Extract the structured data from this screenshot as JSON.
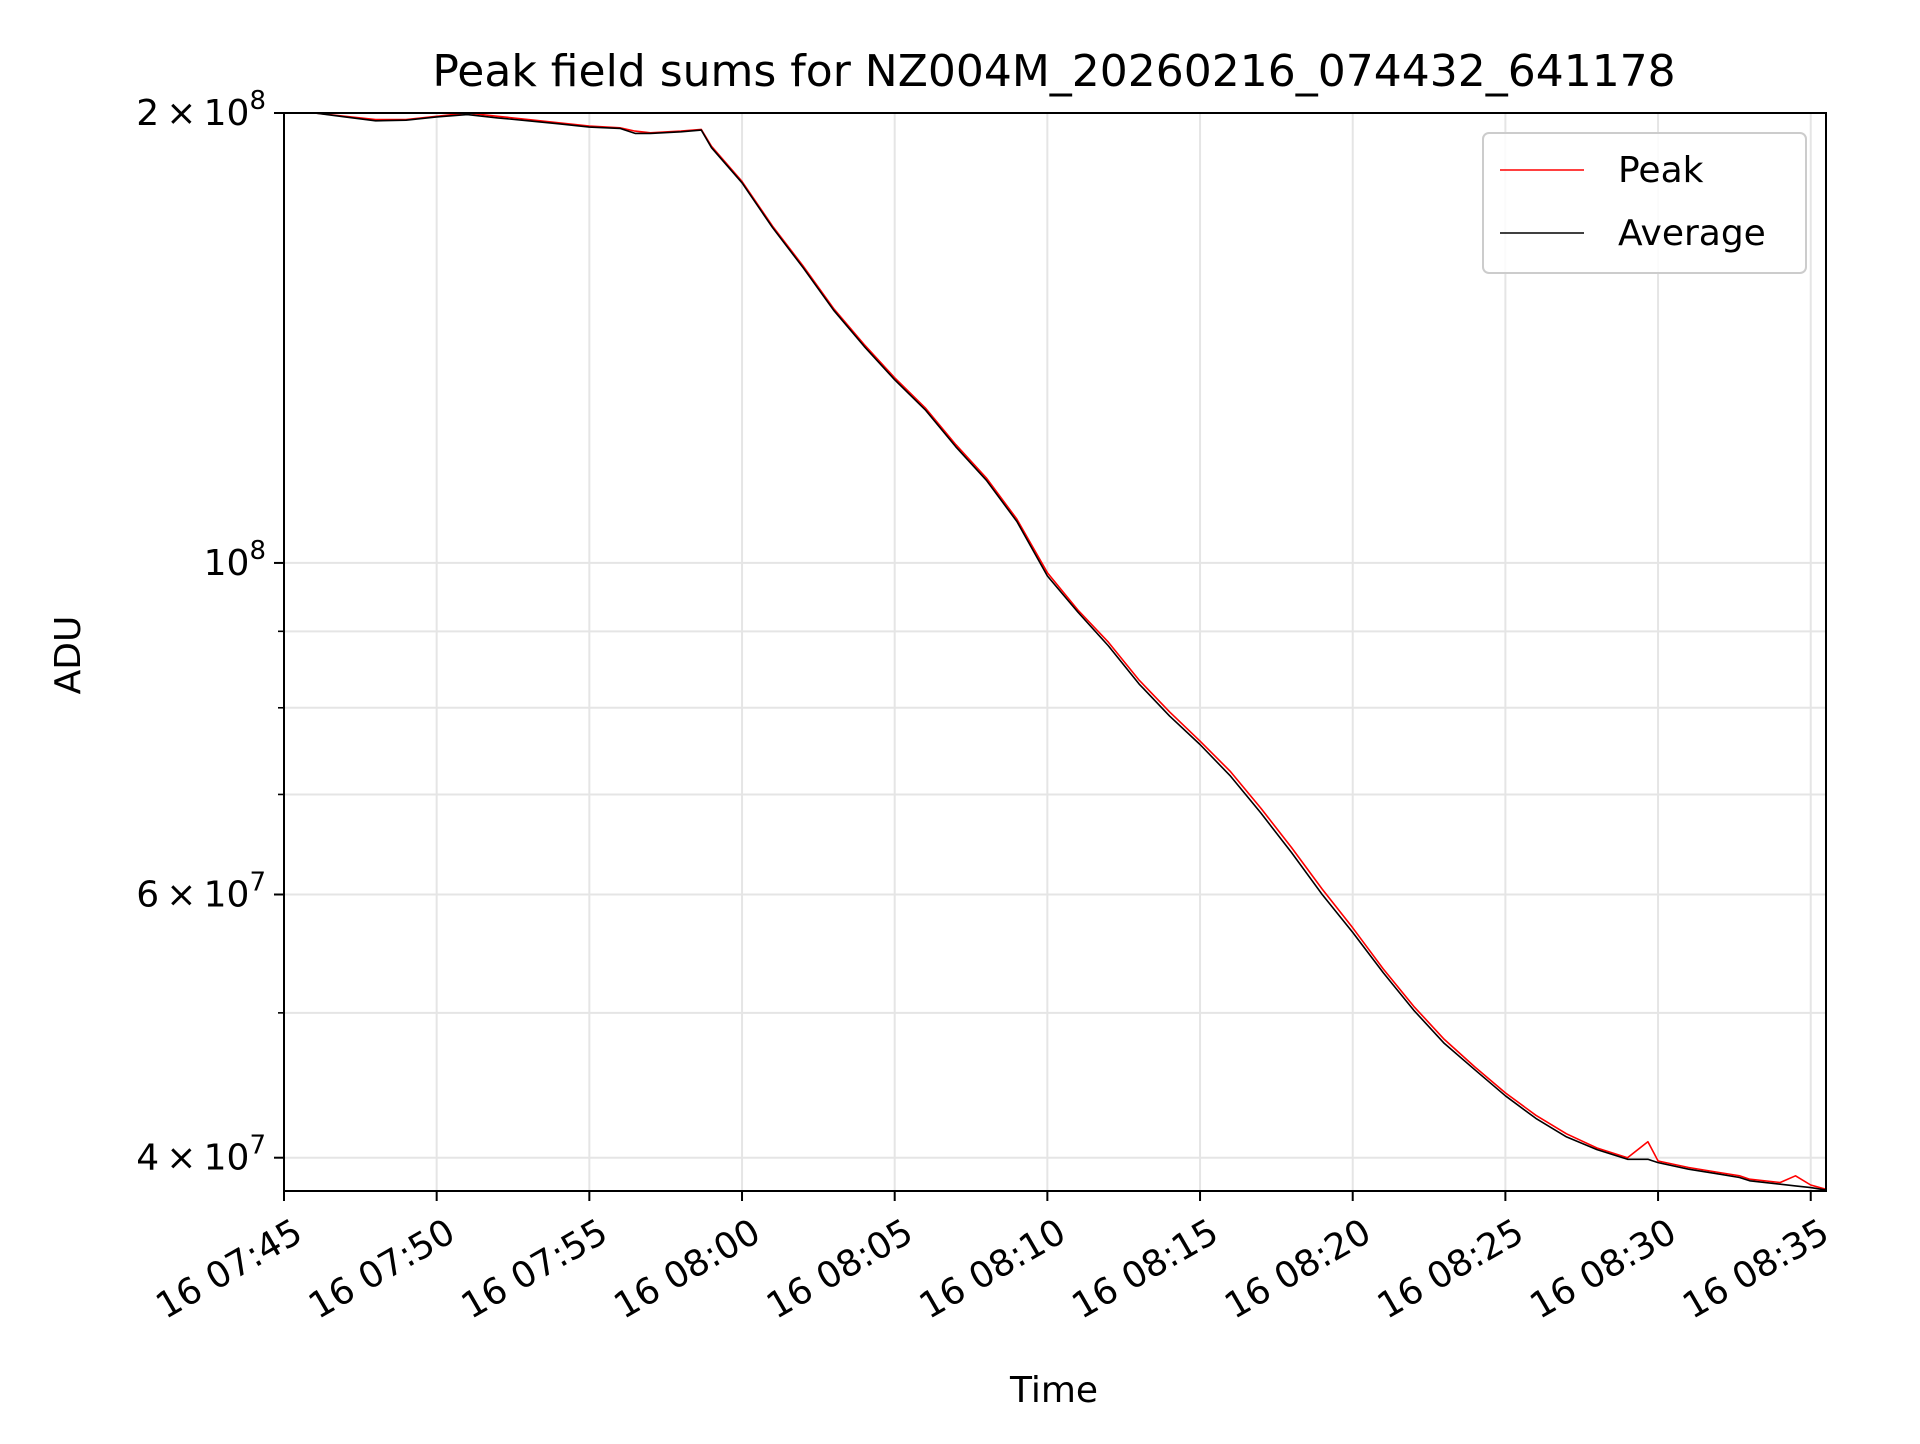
{
  "chart_data": {
    "type": "line",
    "title": "Peak field sums for NZ004M_20260216_074432_641178",
    "xlabel": "Time",
    "ylabel": "ADU",
    "yscale": "log",
    "xlim": [
      "16 07:45",
      "16 08:35:30"
    ],
    "ylim": [
      38000000,
      200000000
    ],
    "xticks": [
      "16 07:45",
      "16 07:50",
      "16 07:55",
      "16 08:00",
      "16 08:05",
      "16 08:10",
      "16 08:15",
      "16 08:20",
      "16 08:25",
      "16 08:30",
      "16 08:35"
    ],
    "yticks": [
      {
        "value": 40000000,
        "mant": "4",
        "exp": "7"
      },
      {
        "value": 60000000,
        "mant": "6",
        "exp": "7"
      },
      {
        "value": 100000000,
        "mant": "",
        "exp": "8"
      },
      {
        "value": 200000000,
        "mant": "2",
        "exp": "8"
      }
    ],
    "y_minor_ticks": [
      50000000,
      70000000,
      80000000,
      90000000
    ],
    "grid": true,
    "legend_position": "top-right",
    "series": [
      {
        "name": "Peak",
        "color": "#ff0000",
        "x": [
          "16 07:45",
          "16 07:46",
          "16 07:47",
          "16 07:48",
          "16 07:49",
          "16 07:50",
          "16 07:51",
          "16 07:52",
          "16 07:53",
          "16 07:54",
          "16 07:55",
          "16 07:56",
          "16 07:56:30",
          "16 07:57",
          "16 07:58",
          "16 07:58:40",
          "16 07:59",
          "16 08:00",
          "16 08:01",
          "16 08:02",
          "16 08:03",
          "16 08:04",
          "16 08:05",
          "16 08:06",
          "16 08:07",
          "16 08:08",
          "16 08:09",
          "16 08:10",
          "16 08:11",
          "16 08:12",
          "16 08:13",
          "16 08:14",
          "16 08:15",
          "16 08:16",
          "16 08:17",
          "16 08:18",
          "16 08:19",
          "16 08:20",
          "16 08:21",
          "16 08:22",
          "16 08:23",
          "16 08:24",
          "16 08:25",
          "16 08:26",
          "16 08:27",
          "16 08:28",
          "16 08:29",
          "16 08:29:40",
          "16 08:30",
          "16 08:31",
          "16 08:32",
          "16 08:32:40",
          "16 08:33",
          "16 08:34",
          "16 08:34:30",
          "16 08:35",
          "16 08:35:30"
        ],
        "values": [
          200000000,
          200000000,
          199000000,
          198000000,
          198000000,
          199000000,
          200000000,
          199000000,
          198000000,
          197000000,
          196000000,
          195500000,
          194500000,
          194000000,
          194500000,
          195000000,
          190000000,
          180000000,
          168000000,
          158000000,
          148000000,
          140000000,
          133000000,
          127000000,
          120000000,
          114000000,
          107000000,
          98500000,
          93000000,
          88500000,
          83500000,
          79500000,
          76000000,
          72500000,
          68500000,
          64500000,
          60500000,
          57000000,
          53500000,
          50500000,
          48000000,
          46000000,
          44200000,
          42700000,
          41500000,
          40600000,
          40000000,
          41000000,
          39800000,
          39400000,
          39100000,
          38900000,
          38700000,
          38500000,
          38900000,
          38350000,
          38100000
        ]
      },
      {
        "name": "Average",
        "color": "#000000",
        "x": [
          "16 07:45",
          "16 07:46",
          "16 07:47",
          "16 07:48",
          "16 07:49",
          "16 07:50",
          "16 07:51",
          "16 07:52",
          "16 07:53",
          "16 07:54",
          "16 07:55",
          "16 07:56",
          "16 07:56:30",
          "16 07:57",
          "16 07:58",
          "16 07:58:40",
          "16 07:59",
          "16 08:00",
          "16 08:01",
          "16 08:02",
          "16 08:03",
          "16 08:04",
          "16 08:05",
          "16 08:06",
          "16 08:07",
          "16 08:08",
          "16 08:09",
          "16 08:10",
          "16 08:11",
          "16 08:12",
          "16 08:13",
          "16 08:14",
          "16 08:15",
          "16 08:16",
          "16 08:17",
          "16 08:18",
          "16 08:19",
          "16 08:20",
          "16 08:21",
          "16 08:22",
          "16 08:23",
          "16 08:24",
          "16 08:25",
          "16 08:26",
          "16 08:27",
          "16 08:28",
          "16 08:29",
          "16 08:29:40",
          "16 08:30",
          "16 08:31",
          "16 08:32",
          "16 08:32:40",
          "16 08:33",
          "16 08:34",
          "16 08:34:30",
          "16 08:35",
          "16 08:35:30"
        ],
        "values": [
          200000000,
          200000000,
          198800000,
          197600000,
          197800000,
          198800000,
          199500000,
          198500000,
          197600000,
          196700000,
          195700000,
          195300000,
          193800000,
          193800000,
          194300000,
          194800000,
          189600000,
          179600000,
          167600000,
          157600000,
          147600000,
          139600000,
          132600000,
          126600000,
          119600000,
          113600000,
          106600000,
          98000000,
          92700000,
          88000000,
          83000000,
          79000000,
          75600000,
          72000000,
          68000000,
          64000000,
          60000000,
          56600000,
          53200000,
          50200000,
          47700000,
          45800000,
          44000000,
          42500000,
          41300000,
          40500000,
          39900000,
          39900000,
          39700000,
          39300000,
          39000000,
          38800000,
          38600000,
          38400000,
          38300000,
          38200000,
          38050000
        ]
      }
    ]
  }
}
